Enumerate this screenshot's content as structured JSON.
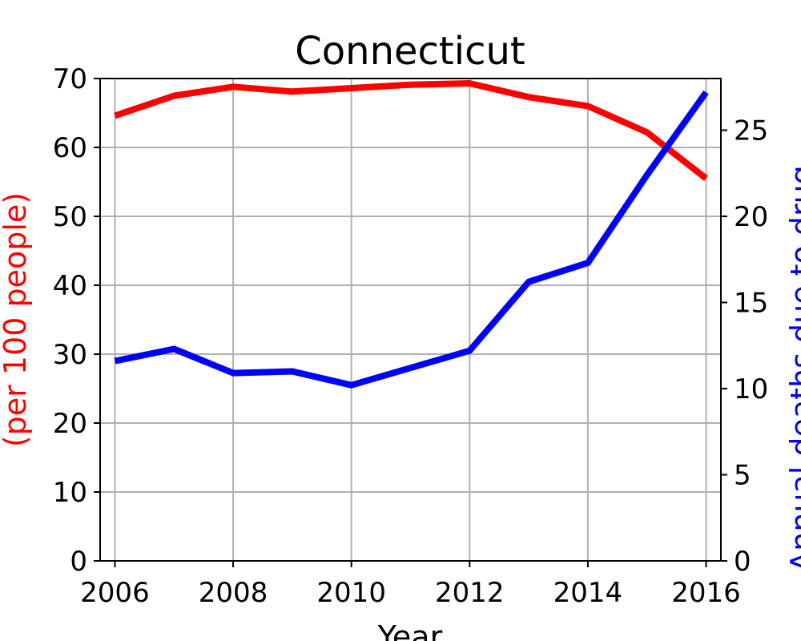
{
  "chart_data": {
    "type": "line",
    "title": "Connecticut",
    "xlabel": "Year",
    "ylabel_left": "(per 100 people)",
    "ylabel_right": "Annual deaths due to drug",
    "xlim": [
      2005.75,
      2016.25
    ],
    "ylim_left": [
      0,
      70
    ],
    "ylim_right": [
      0,
      28
    ],
    "x_ticks": [
      2006,
      2008,
      2010,
      2012,
      2014,
      2016
    ],
    "y_left_ticks": [
      0,
      10,
      20,
      30,
      40,
      50,
      60,
      70
    ],
    "y_right_ticks": [
      0,
      5,
      10,
      15,
      20,
      25
    ],
    "grid": true,
    "series": [
      {
        "axis": "left",
        "color": "#ff0000",
        "x": [
          2006,
          2007,
          2008,
          2009,
          2010,
          2011,
          2012,
          2013,
          2014,
          2015,
          2016
        ],
        "values": [
          64.6,
          67.5,
          68.8,
          68.1,
          68.6,
          69.1,
          69.3,
          67.3,
          66.0,
          62.2,
          55.5
        ]
      },
      {
        "axis": "right",
        "color": "#0000ff",
        "x": [
          2006,
          2007,
          2008,
          2009,
          2010,
          2011,
          2012,
          2013,
          2014,
          2015,
          2016
        ],
        "values": [
          11.6,
          12.3,
          10.9,
          11.0,
          10.2,
          11.2,
          12.2,
          16.2,
          17.3,
          22.4,
          27.2
        ]
      }
    ]
  }
}
